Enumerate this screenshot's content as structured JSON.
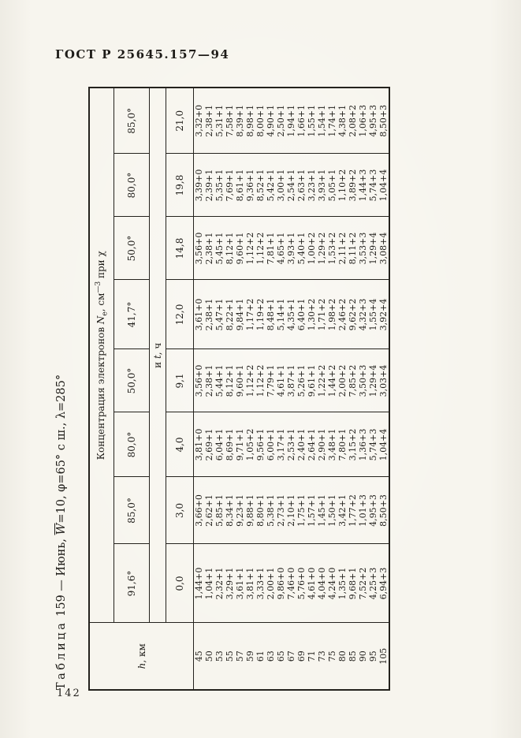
{
  "page": {
    "doc_header": "ГОСТ Р 25645.157—94",
    "page_number": "142"
  },
  "table": {
    "title": {
      "word": "Таблица",
      "mid": " 159 — Июнь, ",
      "wbar": "W",
      "rest": "=10, φ=65° с ш., λ=285°"
    },
    "h_header": {
      "var": "h",
      "unit": ", км"
    },
    "span_header": {
      "pre": "Концентрация электронов ",
      "symbol": "N",
      "sub": "e",
      "mid": ", см",
      "sup": "—3",
      "post": " при χ"
    },
    "sub_header": {
      "pre": "и ",
      "var": "t",
      "post": ", ч"
    },
    "chi_values": [
      "91,6°",
      "85,0°",
      "80,0°",
      "50,0°",
      "41,7°",
      "50,0°",
      "80,0°",
      "85,0°"
    ],
    "t_values": [
      "0,0",
      "3,0",
      "4,0",
      "9,1",
      "12,0",
      "14,8",
      "19,8",
      "21,0"
    ],
    "rows": [
      {
        "h": "45",
        "values": [
          "1,44+0",
          "3,66+0",
          "3,81+0",
          "3,56+0",
          "3,61+0",
          "3,56+0",
          "3,39+0",
          "3,32+0"
        ]
      },
      {
        "h": "50",
        "values": [
          "1,04+1",
          "2,62+1",
          "2,69+1",
          "2,38+1",
          "2,38+1",
          "2,38+1",
          "2,39+1",
          "2,38+1"
        ]
      },
      {
        "h": "53",
        "values": [
          "2,32+1",
          "5,85+1",
          "6,04+1",
          "5,44+1",
          "5,47+1",
          "5,45+1",
          "5,35+1",
          "5,31+1"
        ]
      },
      {
        "h": "55",
        "values": [
          "3,29+1",
          "8,34+1",
          "8,69+1",
          "8,12+1",
          "8,22+1",
          "8,12+1",
          "7,69+1",
          "7,58+1"
        ]
      },
      {
        "h": "57",
        "values": [
          "3,61+1",
          "9,23+1",
          "9,71+1",
          "9,60+1",
          "9,84+1",
          "9,60+1",
          "8,61+1",
          "8,39+1"
        ]
      },
      {
        "h": "59",
        "values": [
          "3,81+1",
          "9,88+1",
          "1,05+2",
          "1,12+2",
          "1,17+2",
          "1,12+2",
          "9,36+1",
          "8,98+1"
        ]
      },
      {
        "h": "61",
        "values": [
          "3,33+1",
          "8,80+1",
          "9,56+1",
          "1,12+2",
          "1,19+2",
          "1,12+2",
          "8,52+1",
          "8,00+1"
        ]
      },
      {
        "h": "63",
        "values": [
          "2,00+1",
          "5,38+1",
          "6,00+1",
          "7,79+1",
          "8,48+1",
          "7,81+1",
          "5,42+1",
          "4,90+1"
        ]
      },
      {
        "h": "65",
        "values": [
          "9,86+0",
          "2,73+1",
          "3,17+1",
          "4,61+1",
          "5,14+1",
          "4,65+1",
          "3,00+1",
          "2,50+1"
        ]
      },
      {
        "h": "67",
        "values": [
          "7,46+0",
          "2,10+1",
          "2,53+1",
          "3,87+1",
          "4,35+1",
          "3,93+1",
          "2,54+1",
          "1,94+1"
        ]
      },
      {
        "h": "69",
        "values": [
          "5,76+0",
          "1,75+1",
          "2,40+1",
          "5,26+1",
          "6,40+1",
          "5,40+1",
          "2,63+1",
          "1,66+1"
        ]
      },
      {
        "h": "71",
        "values": [
          "4,61+0",
          "1,57+1",
          "2,64+1",
          "9,61+1",
          "1,30+2",
          "1,00+2",
          "3,23+1",
          "1,55+1"
        ]
      },
      {
        "h": "73",
        "values": [
          "4,04+0",
          "1,45+1",
          "2,90+1",
          "1,22+2",
          "1,71+2",
          "1,29+2",
          "3,93+1",
          "1,54+1"
        ]
      },
      {
        "h": "75",
        "values": [
          "4,24+0",
          "1,50+1",
          "3,48+1",
          "1,44+2",
          "1,98+2",
          "1,53+2",
          "5,05+1",
          "1,74+1"
        ]
      },
      {
        "h": "80",
        "values": [
          "1,35+1",
          "3,42+1",
          "7,80+1",
          "2,00+2",
          "2,46+2",
          "2,11+2",
          "1,10+2",
          "4,38+1"
        ]
      },
      {
        "h": "85",
        "values": [
          "9,68+1",
          "1,77+2",
          "3,15+2",
          "7,85+2",
          "9,62+2",
          "8,11+2",
          "3,89+2",
          "2,08+2"
        ]
      },
      {
        "h": "90",
        "values": [
          "7,52+2",
          "1,01+3",
          "1,36+3",
          "3,50+3",
          "4,32+3",
          "3,53+3",
          "1,44+3",
          "1,06+3"
        ]
      },
      {
        "h": "95",
        "values": [
          "4,25+3",
          "4,95+3",
          "5,74+3",
          "1,29+4",
          "1,55+4",
          "1,29+4",
          "5,74+3",
          "4,95+3"
        ]
      },
      {
        "h": "105",
        "values": [
          "6,94+3",
          "8,50+3",
          "1,04+4",
          "3,03+4",
          "3,92+4",
          "3,08+4",
          "1,04+4",
          "8,50+3"
        ]
      }
    ]
  }
}
